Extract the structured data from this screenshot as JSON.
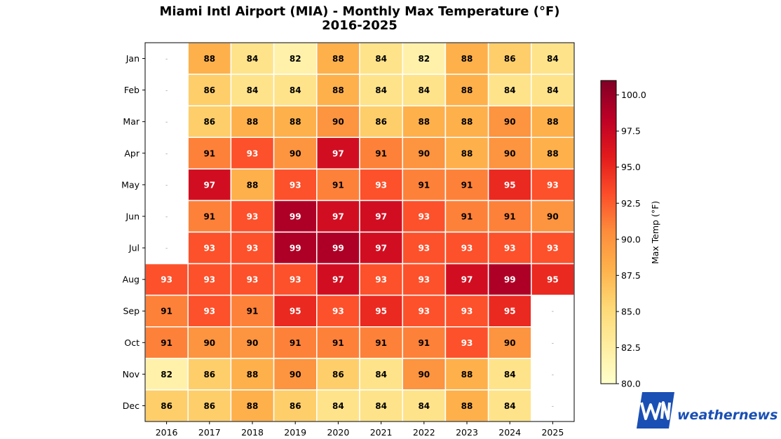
{
  "chart_data": {
    "type": "heatmap",
    "title": "Miami Intl Airport (MIA) - Monthly Max Temperature (°F)",
    "subtitle": "2016-2025",
    "x": [
      "2016",
      "2017",
      "2018",
      "2019",
      "2020",
      "2021",
      "2022",
      "2023",
      "2024",
      "2025"
    ],
    "y": [
      "Jan",
      "Feb",
      "Mar",
      "Apr",
      "May",
      "Jun",
      "Jul",
      "Aug",
      "Sep",
      "Oct",
      "Nov",
      "Dec"
    ],
    "values": [
      [
        null,
        88,
        84,
        82,
        88,
        84,
        82,
        88,
        86,
        84
      ],
      [
        null,
        86,
        84,
        84,
        88,
        84,
        84,
        88,
        84,
        84
      ],
      [
        null,
        86,
        88,
        88,
        90,
        86,
        88,
        88,
        90,
        88
      ],
      [
        null,
        91,
        93,
        90,
        97,
        91,
        90,
        88,
        90,
        88
      ],
      [
        null,
        97,
        88,
        93,
        91,
        93,
        91,
        91,
        95,
        93
      ],
      [
        null,
        91,
        93,
        99,
        97,
        97,
        93,
        91,
        91,
        90
      ],
      [
        null,
        93,
        93,
        99,
        99,
        97,
        93,
        93,
        93,
        93
      ],
      [
        93,
        93,
        93,
        93,
        97,
        93,
        93,
        97,
        99,
        95
      ],
      [
        91,
        93,
        91,
        95,
        93,
        95,
        93,
        93,
        95,
        null
      ],
      [
        91,
        90,
        90,
        91,
        91,
        91,
        91,
        93,
        90,
        null
      ],
      [
        82,
        86,
        88,
        90,
        86,
        84,
        90,
        88,
        84,
        null
      ],
      [
        86,
        86,
        88,
        86,
        84,
        84,
        84,
        88,
        84,
        null
      ]
    ],
    "missing_label": "-",
    "colorbar": {
      "label": "Max Temp (°F)",
      "range": [
        80,
        101
      ],
      "ticks": [
        "80.0",
        "82.5",
        "85.0",
        "87.5",
        "90.0",
        "92.5",
        "95.0",
        "97.5",
        "100.0"
      ],
      "colormap": "YlOrRd"
    },
    "grid": true
  },
  "logo": {
    "mark": "WN",
    "text": "weathernews",
    "color": "#1a4fb4"
  }
}
